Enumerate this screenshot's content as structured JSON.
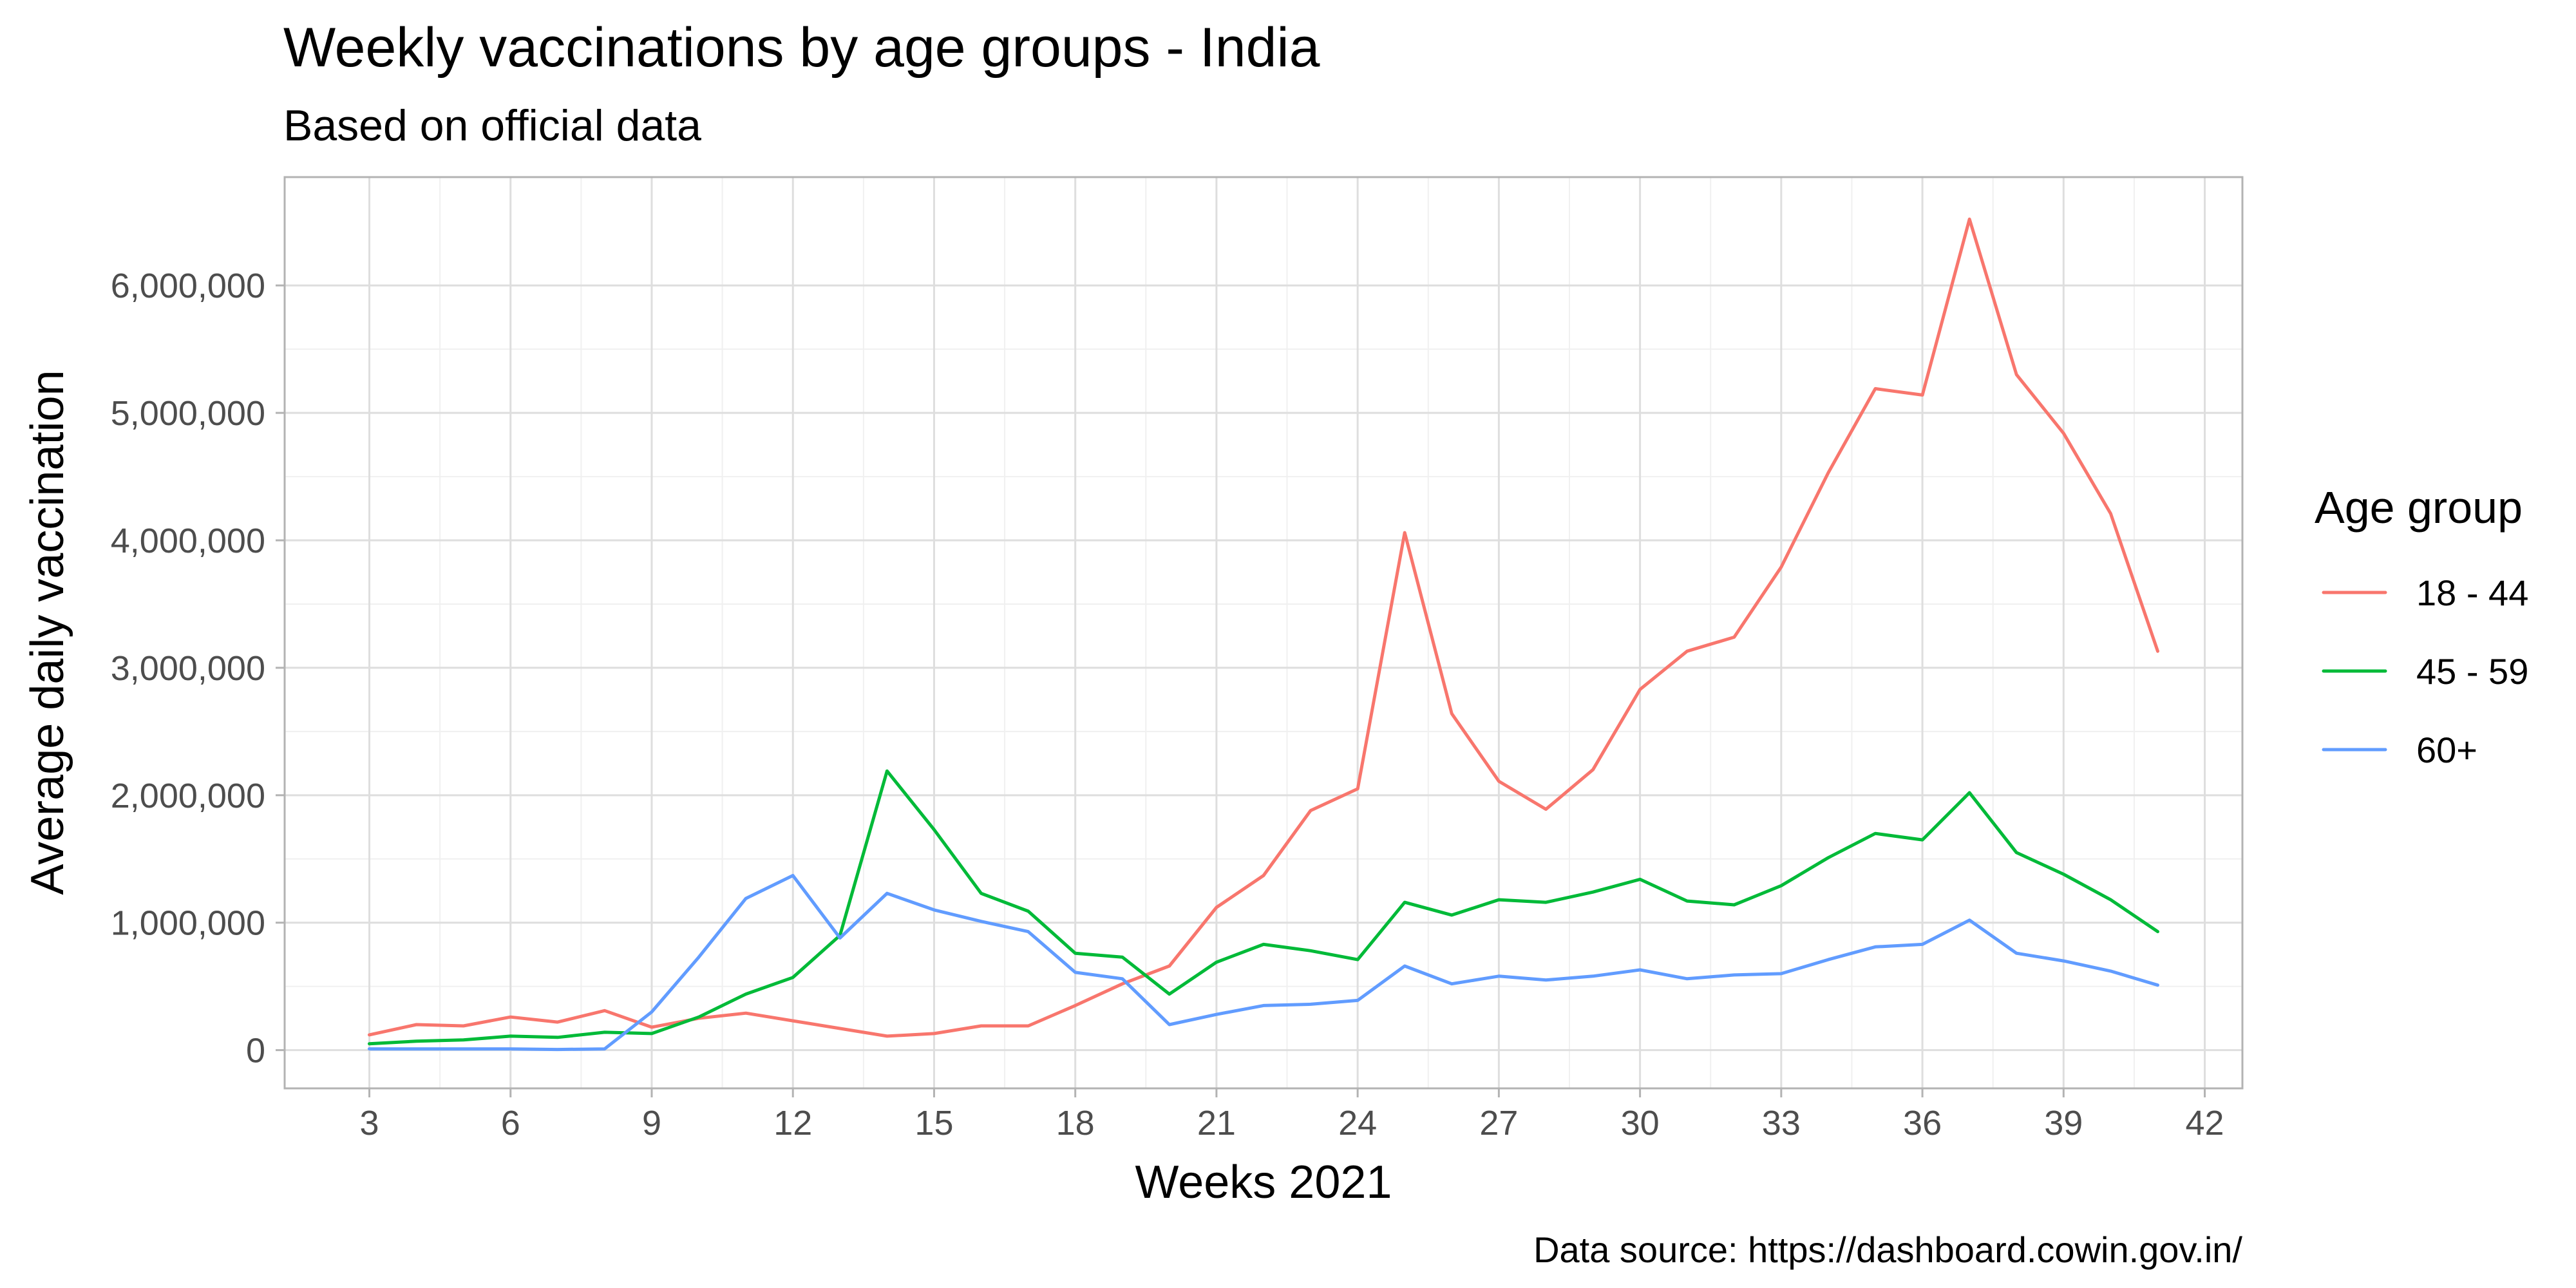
{
  "chart_data": {
    "type": "line",
    "title": "Weekly vaccinations by age groups - India",
    "subtitle": "Based on official data",
    "xlabel": "Weeks 2021",
    "ylabel": "Average daily vaccination",
    "caption": "Data source: https://dashboard.cowin.gov.in/",
    "xlim": [
      1.2,
      42.8
    ],
    "ylim": [
      -300000,
      6850000
    ],
    "x_ticks": [
      3,
      6,
      9,
      12,
      15,
      18,
      21,
      24,
      27,
      30,
      33,
      36,
      39,
      42
    ],
    "x_tick_labels": [
      "3",
      "6",
      "9",
      "12",
      "15",
      "18",
      "21",
      "24",
      "27",
      "30",
      "33",
      "36",
      "39",
      "42"
    ],
    "y_ticks": [
      0,
      1000000,
      2000000,
      3000000,
      4000000,
      5000000,
      6000000
    ],
    "y_tick_labels": [
      "0",
      "1,000,000",
      "2,000,000",
      "3,000,000",
      "4,000,000",
      "5,000,000",
      "6,000,000"
    ],
    "grid": true,
    "legend": {
      "title": "Age group",
      "position": "right"
    },
    "x": [
      3,
      4,
      5,
      6,
      7,
      8,
      9,
      10,
      11,
      12,
      13,
      14,
      15,
      16,
      17,
      18,
      19,
      20,
      21,
      22,
      23,
      24,
      25,
      26,
      27,
      28,
      29,
      30,
      31,
      32,
      33,
      34,
      35,
      36,
      37,
      38,
      39,
      40,
      41
    ],
    "series": [
      {
        "name": "18 - 44",
        "color": "#F8766D",
        "values": [
          120000,
          200000,
          190000,
          260000,
          220000,
          310000,
          180000,
          250000,
          290000,
          230000,
          170000,
          110000,
          130000,
          190000,
          190000,
          350000,
          520000,
          660000,
          1120000,
          1370000,
          1880000,
          2050000,
          4060000,
          2640000,
          2110000,
          1890000,
          2200000,
          2830000,
          3130000,
          3240000,
          3790000,
          4530000,
          5190000,
          5140000,
          6520000,
          5300000,
          4840000,
          4210000,
          3130000
        ]
      },
      {
        "name": "45 - 59",
        "color": "#00BA38",
        "values": [
          50000,
          70000,
          80000,
          110000,
          100000,
          140000,
          130000,
          260000,
          440000,
          570000,
          900000,
          2190000,
          1730000,
          1230000,
          1090000,
          760000,
          730000,
          440000,
          690000,
          830000,
          780000,
          710000,
          1160000,
          1060000,
          1180000,
          1160000,
          1240000,
          1340000,
          1170000,
          1140000,
          1290000,
          1510000,
          1700000,
          1650000,
          2020000,
          1550000,
          1380000,
          1180000,
          930000
        ]
      },
      {
        "name": "60+",
        "color": "#619CFF",
        "values": [
          10000,
          10000,
          10000,
          10000,
          5000,
          10000,
          300000,
          730000,
          1190000,
          1370000,
          880000,
          1230000,
          1100000,
          1010000,
          930000,
          610000,
          560000,
          200000,
          280000,
          350000,
          360000,
          390000,
          660000,
          520000,
          580000,
          550000,
          580000,
          630000,
          560000,
          590000,
          600000,
          710000,
          810000,
          830000,
          1020000,
          760000,
          700000,
          620000,
          510000
        ]
      }
    ]
  }
}
